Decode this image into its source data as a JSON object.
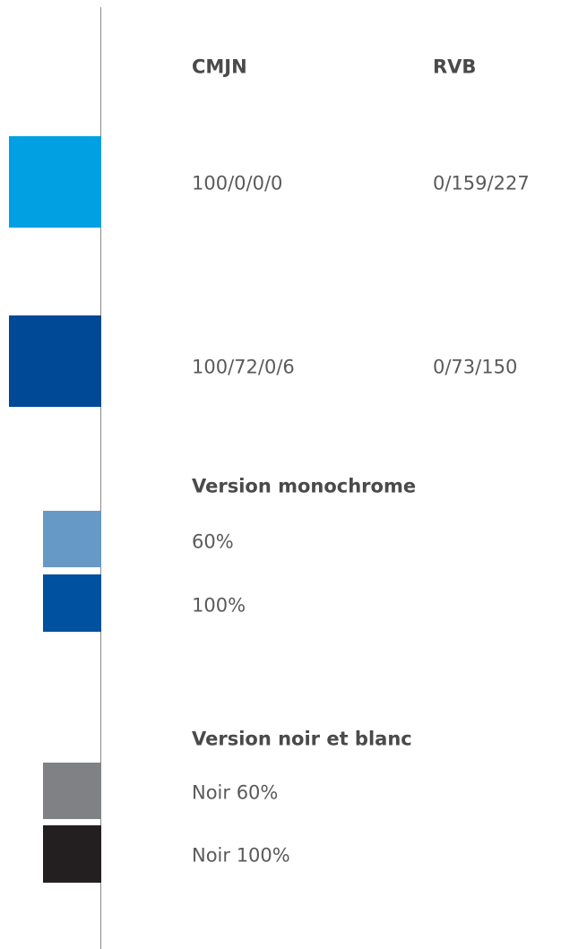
{
  "header": {
    "cmjn": "CMJN",
    "rvb": "RVB"
  },
  "colors": [
    {
      "swatch": "#00a0e3",
      "cmjn": "100/0/0/0",
      "rvb": "0/159/227"
    },
    {
      "swatch": "#004996",
      "cmjn": "100/72/0/6",
      "rvb": "0/73/150"
    }
  ],
  "monochrome": {
    "title": "Version monochrome",
    "items": [
      {
        "swatch": "#6699c6",
        "label": "60%"
      },
      {
        "swatch": "#00519f",
        "label": "100%"
      }
    ]
  },
  "noir_et_blanc": {
    "title": "Version noir et blanc",
    "items": [
      {
        "swatch": "#808184",
        "label": "Noir 60%"
      },
      {
        "swatch": "#231f20",
        "label": "Noir 100%"
      }
    ]
  }
}
